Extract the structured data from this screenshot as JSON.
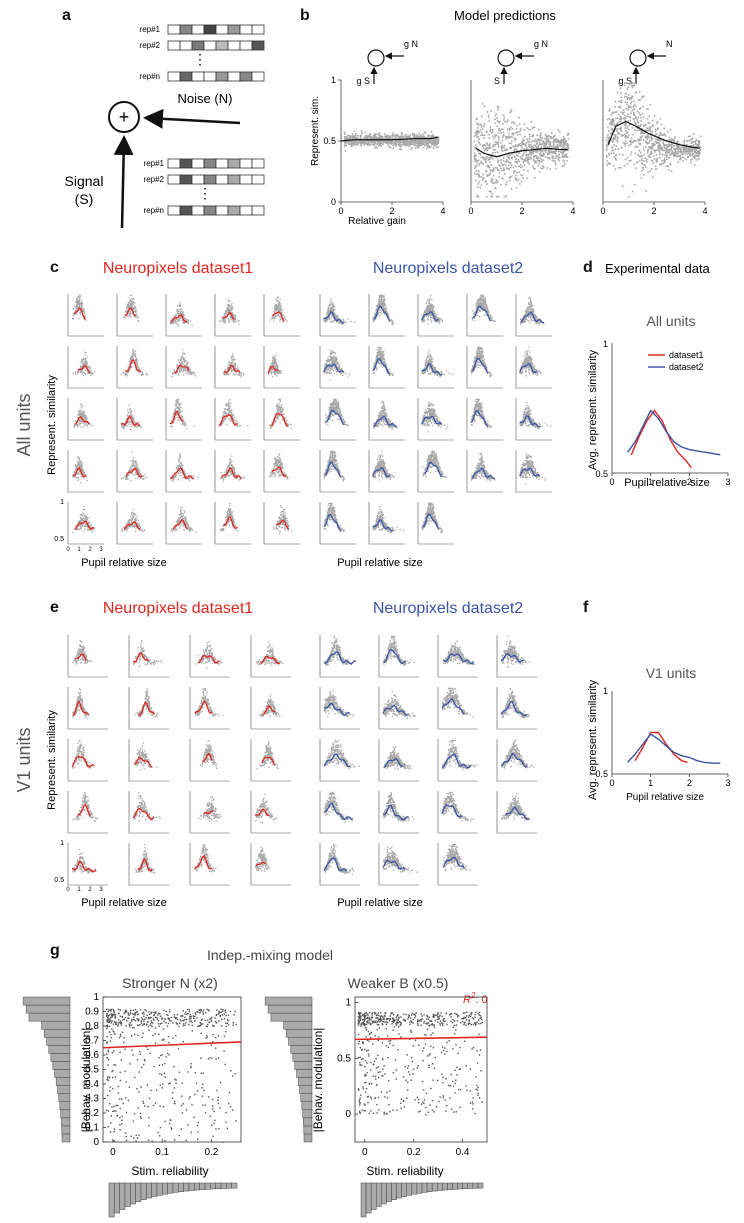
{
  "panel_letters": {
    "a": "a",
    "b": "b",
    "c": "c",
    "d": "d",
    "e": "e",
    "f": "f",
    "g": "g"
  },
  "panel_a": {
    "noise_reps": [
      "rep#1",
      "rep#2",
      "rep#n"
    ],
    "signal_reps": [
      "rep#1",
      "rep#2",
      "rep#n"
    ],
    "noise_label": "Noise (N)",
    "signal_label_1": "Signal",
    "signal_label_2": "(S)",
    "sum_symbol": "+",
    "dots": "⋮"
  },
  "panel_b": {
    "title": "Model predictions",
    "ylabel": "Represent. sim.",
    "xlabel": "Relative gain",
    "ytick_labels": [
      "0",
      "0.5",
      "1"
    ],
    "xtick_labels": [
      "0",
      "2",
      "4"
    ],
    "subplots": [
      {
        "top_label": "g N",
        "left_label": "g S"
      },
      {
        "top_label": "g N",
        "left_label": "S"
      },
      {
        "top_label": "N",
        "left_label": "g S"
      }
    ]
  },
  "panel_c": {
    "side_label": "All units",
    "left_title": "Neuropixels dataset1",
    "right_title": "Neuropixels dataset2",
    "ylabel": "Represent. similarity",
    "xlabel_left": "Pupil relative size",
    "xlabel_right": "Pupil relative size",
    "ytick_labels": [
      "1",
      "0.5"
    ],
    "xtick_labels": [
      "0",
      "1",
      "2",
      "3"
    ]
  },
  "panel_d": {
    "header": "Experimental data",
    "title": "All units",
    "ylabel": "Avg. represent. similarity",
    "xlabel": "Pupil relative size",
    "ytick_labels": [
      "1",
      "0.5"
    ],
    "xtick_labels": [
      "0",
      "1",
      "2",
      "3"
    ],
    "legend": [
      "dataset1",
      "dataset2"
    ]
  },
  "panel_e": {
    "side_label": "V1 units",
    "left_title": "Neuropixels dataset1",
    "right_title": "Neuropixels dataset2",
    "ylabel": "Represent. similarity",
    "xlabel_left": "Pupil relative size",
    "xlabel_right": "Pupil relative size",
    "ytick_labels": [
      "1",
      "0.5"
    ],
    "xtick_labels": [
      "0",
      "1",
      "2",
      "3"
    ]
  },
  "panel_f": {
    "title": "V1 units",
    "ylabel": "Avg. represent. similarity",
    "xlabel": "Pupil relative size",
    "ytick_labels": [
      "1",
      "0.5"
    ],
    "xtick_labels": [
      "0",
      "1",
      "2",
      "3"
    ]
  },
  "panel_g": {
    "title": "Indep.-mixing model",
    "left_title": "Stronger N (x2)",
    "right_title": "Weaker B (x0.5)",
    "r2_label": "R",
    "r2_sup": "2",
    "r2_value": ": 0",
    "ylabel": "|Behav. modulation|",
    "xlabel": "Stim. reliability",
    "left_yticks": [
      "0",
      "0.1",
      "0.2",
      "0.3",
      "0.4",
      "0.5",
      "0.6",
      "0.7",
      "0.8",
      "0.9",
      "1"
    ],
    "left_xticks": [
      "0",
      "0.1",
      "0.2"
    ],
    "right_yticks": [
      "0",
      "0.5",
      "1"
    ],
    "right_xticks": [
      "0",
      "0.2",
      "0.4"
    ]
  },
  "colors": {
    "dataset1": "#e0261f",
    "dataset2": "#3a55a4",
    "scatter": "#a8a8a8",
    "fit": "#111111",
    "dark": "#444444"
  },
  "chart_data": [
    {
      "type": "line",
      "title": "All units",
      "xlabel": "Pupil relative size",
      "ylabel": "Avg. represent. similarity",
      "xlim": [
        0,
        3
      ],
      "ylim": [
        0.5,
        1
      ],
      "series": [
        {
          "name": "dataset1",
          "color": "#e0261f",
          "x": [
            0.5,
            0.7,
            0.9,
            1.1,
            1.3,
            1.5,
            1.7,
            1.9,
            2.05
          ],
          "y": [
            0.57,
            0.64,
            0.7,
            0.74,
            0.7,
            0.63,
            0.58,
            0.55,
            0.52
          ]
        },
        {
          "name": "dataset2",
          "color": "#3a55a4",
          "x": [
            0.4,
            0.6,
            0.8,
            1.0,
            1.2,
            1.4,
            1.6,
            1.8,
            2.0,
            2.2,
            2.4,
            2.6,
            2.8
          ],
          "y": [
            0.58,
            0.62,
            0.68,
            0.74,
            0.71,
            0.66,
            0.62,
            0.6,
            0.59,
            0.585,
            0.58,
            0.575,
            0.57
          ]
        }
      ]
    },
    {
      "type": "line",
      "title": "V1 units",
      "xlabel": "Pupil relative size",
      "ylabel": "Avg. represent. similarity",
      "xlim": [
        0,
        3
      ],
      "ylim": [
        0.5,
        1
      ],
      "series": [
        {
          "name": "dataset1",
          "color": "#e0261f",
          "x": [
            0.6,
            0.8,
            1.0,
            1.2,
            1.4,
            1.6,
            1.8,
            1.95
          ],
          "y": [
            0.58,
            0.66,
            0.75,
            0.75,
            0.68,
            0.62,
            0.58,
            0.57
          ]
        },
        {
          "name": "dataset2",
          "color": "#3a55a4",
          "x": [
            0.4,
            0.6,
            0.8,
            1.0,
            1.2,
            1.4,
            1.6,
            1.8,
            2.0,
            2.2,
            2.4,
            2.6,
            2.8
          ],
          "y": [
            0.57,
            0.62,
            0.68,
            0.74,
            0.71,
            0.67,
            0.63,
            0.61,
            0.6,
            0.58,
            0.57,
            0.565,
            0.565
          ]
        }
      ]
    },
    {
      "type": "scatter",
      "title": "Stronger N (x2)",
      "xlabel": "Stim. reliability",
      "ylabel": "|Behav. modulation|",
      "xlim": [
        -0.02,
        0.26
      ],
      "ylim": [
        0,
        1
      ],
      "regression": {
        "x": [
          -0.02,
          0.26
        ],
        "y": [
          0.65,
          0.69
        ]
      }
    },
    {
      "type": "scatter",
      "title": "Weaker B (x0.5)",
      "xlabel": "Stim. reliability",
      "ylabel": "|Behav. modulation|",
      "xlim": [
        -0.04,
        0.5
      ],
      "ylim": [
        -0.25,
        1.05
      ],
      "annotation": "R2: 0",
      "regression": {
        "x": [
          -0.04,
          0.5
        ],
        "y": [
          0.67,
          0.69
        ]
      }
    },
    {
      "type": "line",
      "title": "Model predictions",
      "xlabel": "Relative gain",
      "ylabel": "Represent. sim.",
      "xlim": [
        0,
        4
      ],
      "ylim": [
        0,
        1
      ],
      "series": [
        {
          "name": "g S, g N",
          "x": [
            0,
            0.5,
            1,
            1.5,
            2,
            2.5,
            3,
            3.5,
            3.8
          ],
          "y": [
            0.5,
            0.51,
            0.51,
            0.51,
            0.51,
            0.515,
            0.52,
            0.52,
            0.53
          ]
        },
        {
          "name": "S, g N",
          "x": [
            0.2,
            0.5,
            1,
            1.5,
            2,
            2.5,
            3,
            3.5,
            3.8
          ],
          "y": [
            0.44,
            0.4,
            0.37,
            0.4,
            0.42,
            0.43,
            0.44,
            0.43,
            0.43
          ]
        },
        {
          "name": "g S, N",
          "x": [
            0.2,
            0.5,
            0.9,
            1.3,
            1.8,
            2.5,
            3,
            3.5,
            3.8
          ],
          "y": [
            0.47,
            0.62,
            0.66,
            0.62,
            0.56,
            0.5,
            0.47,
            0.45,
            0.44
          ]
        }
      ]
    }
  ]
}
